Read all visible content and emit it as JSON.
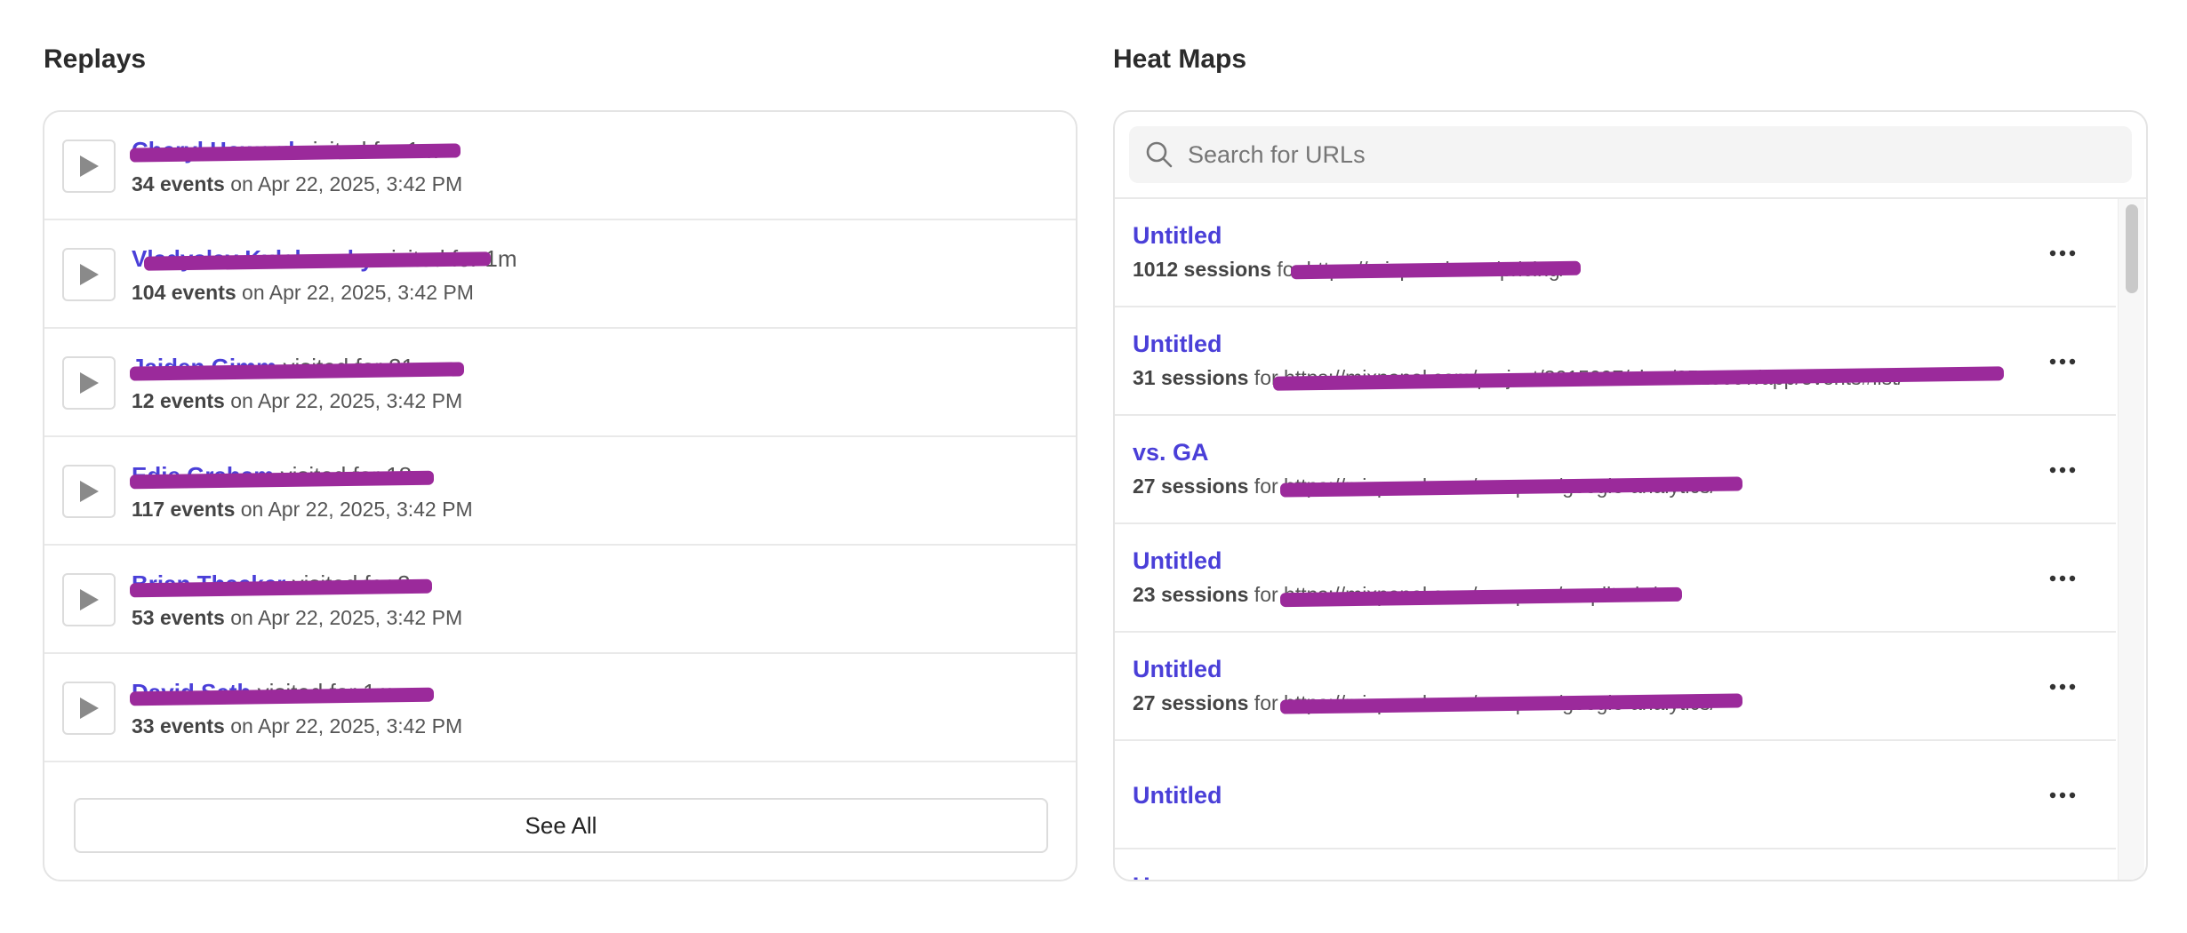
{
  "replays": {
    "title": "Replays",
    "items": [
      {
        "name": "Cheryl Howard",
        "visited": " visited for 1m",
        "count": "34 events",
        "when": "on Apr 22, 2025, 3:42 PM"
      },
      {
        "name": "Vladyslav Kulakovsky",
        "visited": " visited for 1m",
        "count": "104 events",
        "when": "on Apr 22, 2025, 3:42 PM"
      },
      {
        "name": "Jaiden Gimm",
        "visited": " visited for 21m",
        "count": "12 events",
        "when": "on Apr 22, 2025, 3:42 PM"
      },
      {
        "name": "Edie Graham",
        "visited": " visited for 18m",
        "count": "117 events",
        "when": "on Apr 22, 2025, 3:42 PM"
      },
      {
        "name": "Brian Thacker",
        "visited": " visited for 3m",
        "count": "53 events",
        "when": "on Apr 22, 2025, 3:42 PM"
      },
      {
        "name": "David Seth",
        "visited": " visited for 1m",
        "count": "33 events",
        "when": "on Apr 22, 2025, 3:42 PM"
      }
    ],
    "see_all_label": "See All"
  },
  "heatmaps": {
    "title": "Heat Maps",
    "search_placeholder": "Search for URLs",
    "items": [
      {
        "title": "Untitled",
        "count": "1012 sessions",
        "for": " for ",
        "url": "https://mixpanel.com/pricing/"
      },
      {
        "title": "Untitled",
        "count": "31 sessions",
        "for": " for ",
        "url": "https://mixpanel.com/project/3015097/view/3513097/app/events#list/"
      },
      {
        "title": "vs. GA",
        "count": "27 sessions",
        "for": " for ",
        "url": "https://mixpanel.com/compare/google-analytics/"
      },
      {
        "title": "Untitled",
        "count": "23 sessions",
        "for": " for ",
        "url": "https://mixpanel.com/compare/amplitude/"
      },
      {
        "title": "Untitled",
        "count": "27 sessions",
        "for": " for ",
        "url": "https://mixpanel.com/compare/google-analytics/"
      },
      {
        "title": "Untitled",
        "count": "",
        "for": "",
        "url": ""
      },
      {
        "title": "U",
        "count": "",
        "for": "",
        "url": ""
      }
    ]
  },
  "colors": {
    "accent": "#4a3fd8",
    "redaction": "#9b2a9b",
    "border": "#e4e4e4"
  },
  "icons": {
    "play": "play-icon",
    "search": "search-icon",
    "more": "more-horizontal-icon"
  }
}
